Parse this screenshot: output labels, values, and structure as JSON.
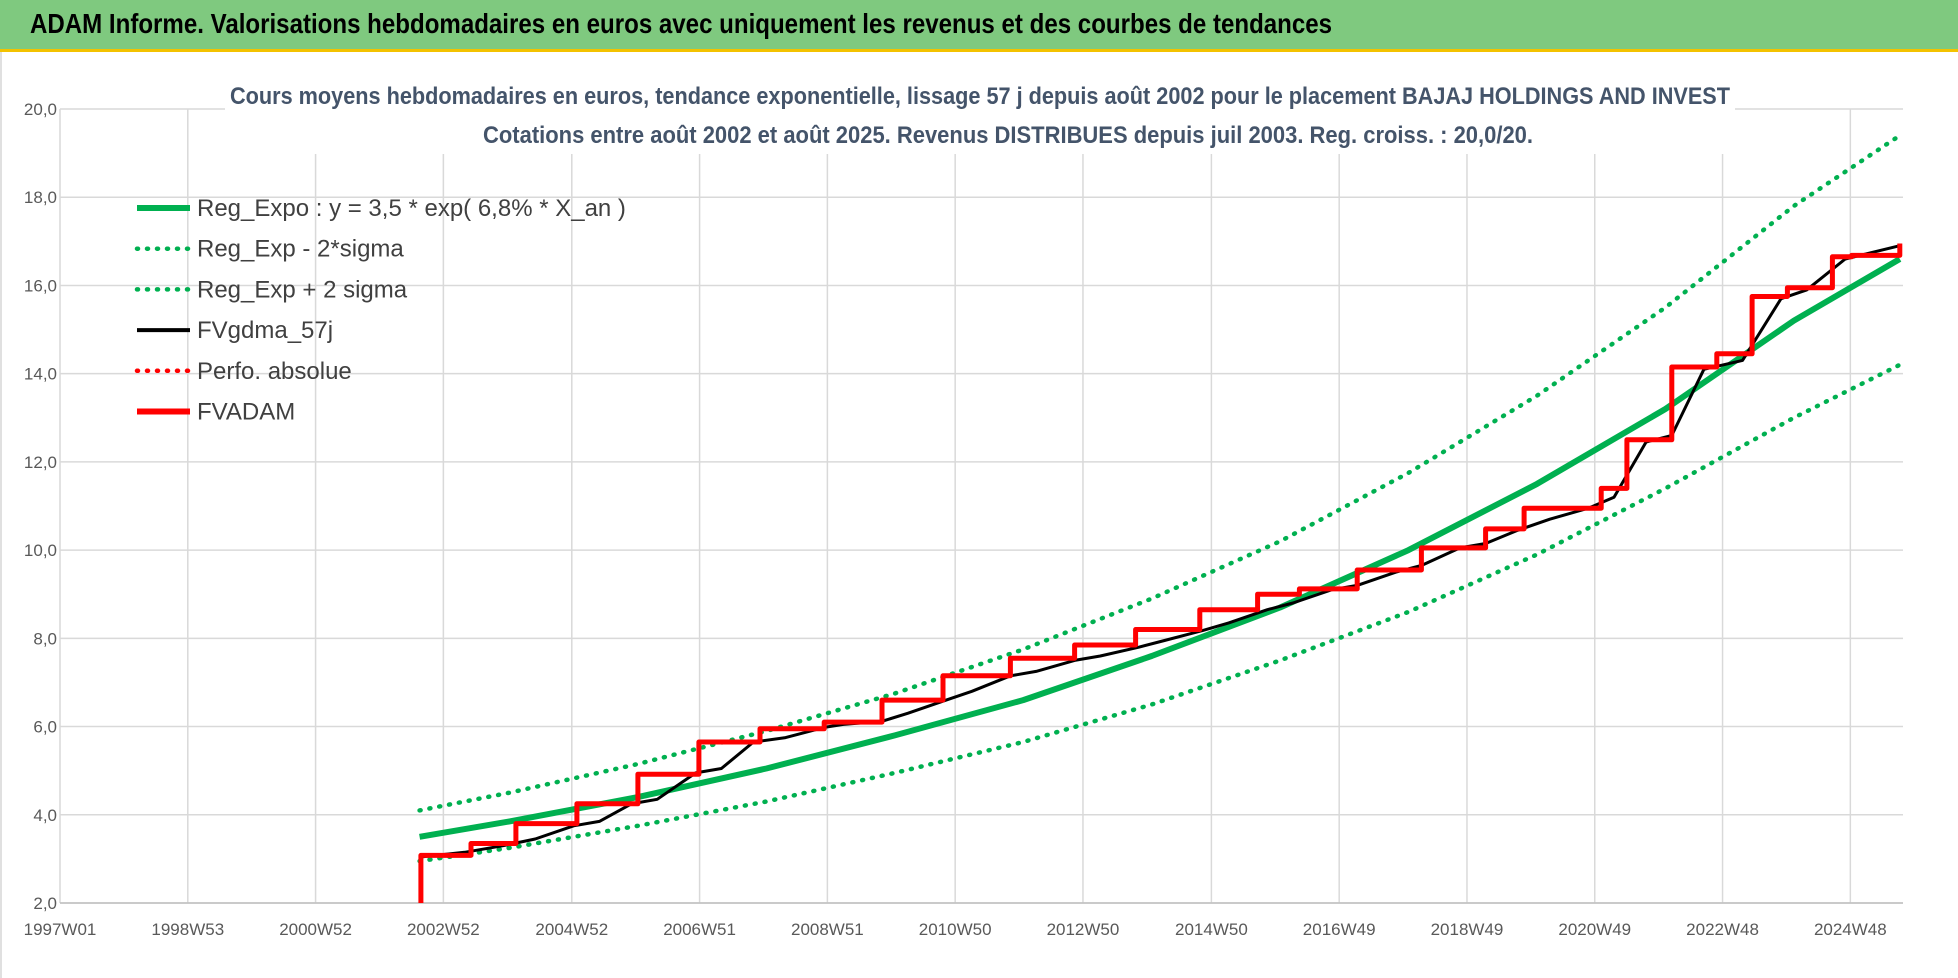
{
  "header": {
    "title": "ADAM Informe. Valorisations hebdomadaires en euros avec uniquement les revenus et des courbes de tendances"
  },
  "chart_data": {
    "type": "line",
    "title": "Cours moyens hebdomadaires en euros, tendance exponentielle, lissage 57 j depuis août 2002 pour le placement BAJAJ HOLDINGS AND INVEST",
    "subtitle": "Cotations entre août 2002 et août 2025. Revenus DISTRIBUES depuis juil 2003. Reg. croiss. : 20,0/20.",
    "xlabel": "",
    "ylabel": "",
    "x_range": [
      1997.0,
      2025.7
    ],
    "ylim": [
      2.0,
      20.0
    ],
    "y_ticks": [
      "2,0",
      "4,0",
      "6,0",
      "8,0",
      "10,0",
      "12,0",
      "14,0",
      "16,0",
      "18,0",
      "20,0"
    ],
    "x_ticks": [
      {
        "label": "1997W01",
        "x": 1997.0
      },
      {
        "label": "1998W53",
        "x": 1998.99
      },
      {
        "label": "2000W52",
        "x": 2000.98
      },
      {
        "label": "2002W52",
        "x": 2002.97
      },
      {
        "label": "2004W52",
        "x": 2004.97
      },
      {
        "label": "2006W51",
        "x": 2006.96
      },
      {
        "label": "2008W51",
        "x": 2008.95
      },
      {
        "label": "2010W50",
        "x": 2010.94
      },
      {
        "label": "2012W50",
        "x": 2012.93
      },
      {
        "label": "2014W50",
        "x": 2014.93
      },
      {
        "label": "2016W49",
        "x": 2016.92
      },
      {
        "label": "2018W49",
        "x": 2018.91
      },
      {
        "label": "2020W49",
        "x": 2020.9
      },
      {
        "label": "2022W48",
        "x": 2022.89
      },
      {
        "label": "2024W48",
        "x": 2024.88
      }
    ],
    "grid": true,
    "legend_position": "top-left",
    "series": [
      {
        "name": "Reg_Expo : y = 3,5 * exp( 6,8% *  X_an )",
        "color": "#00b050",
        "style": "solid",
        "x": [
          2002.6,
          2004.0,
          2006.0,
          2008.0,
          2010.0,
          2012.0,
          2014.0,
          2016.0,
          2018.0,
          2020.0,
          2022.0,
          2024.0,
          2025.65
        ],
        "y": [
          3.5,
          3.85,
          4.4,
          5.05,
          5.8,
          6.6,
          7.6,
          8.7,
          10.0,
          11.5,
          13.2,
          15.2,
          16.6
        ]
      },
      {
        "name": "Reg_Exp - 2*sigma",
        "color": "#00b050",
        "style": "dotted",
        "x": [
          2002.6,
          2004.0,
          2006.0,
          2008.0,
          2010.0,
          2012.0,
          2014.0,
          2016.0,
          2018.0,
          2020.0,
          2022.0,
          2024.0,
          2025.65
        ],
        "y": [
          2.95,
          3.25,
          3.75,
          4.3,
          4.95,
          5.65,
          6.5,
          7.5,
          8.6,
          9.9,
          11.4,
          13.0,
          14.2
        ]
      },
      {
        "name": "Reg_Exp + 2 sigma",
        "color": "#00b050",
        "style": "dotted",
        "x": [
          2002.6,
          2004.0,
          2006.0,
          2008.0,
          2010.0,
          2012.0,
          2014.0,
          2016.0,
          2018.0,
          2020.0,
          2022.0,
          2024.0,
          2025.65
        ],
        "y": [
          4.1,
          4.5,
          5.15,
          5.9,
          6.75,
          7.75,
          8.9,
          10.2,
          11.75,
          13.5,
          15.5,
          17.8,
          19.4
        ]
      },
      {
        "name": "FVgdma_57j",
        "color": "#000000",
        "style": "solid",
        "x": [
          2002.65,
          2003.3,
          2003.9,
          2004.4,
          2005.0,
          2005.4,
          2005.9,
          2006.3,
          2006.9,
          2007.3,
          2007.8,
          2008.3,
          2008.9,
          2009.2,
          2009.8,
          2010.2,
          2010.8,
          2011.2,
          2011.8,
          2012.2,
          2012.8,
          2013.2,
          2013.8,
          2014.2,
          2014.8,
          2015.2,
          2015.8,
          2016.2,
          2016.8,
          2017.2,
          2017.8,
          2018.2,
          2018.8,
          2019.2,
          2019.7,
          2020.2,
          2020.8,
          2021.2,
          2021.7,
          2022.1,
          2022.6,
          2023.2,
          2023.8,
          2024.2,
          2024.8,
          2025.65
        ],
        "y": [
          3.05,
          3.15,
          3.3,
          3.45,
          3.75,
          3.85,
          4.25,
          4.35,
          4.95,
          5.05,
          5.65,
          5.75,
          5.98,
          6.05,
          6.12,
          6.3,
          6.6,
          6.8,
          7.15,
          7.25,
          7.5,
          7.6,
          7.8,
          7.95,
          8.18,
          8.35,
          8.65,
          8.8,
          9.1,
          9.2,
          9.5,
          9.65,
          10.05,
          10.15,
          10.45,
          10.7,
          10.95,
          11.2,
          12.45,
          12.6,
          14.1,
          14.3,
          15.7,
          15.9,
          16.6,
          16.9
        ]
      },
      {
        "name": "Perfo. absolue",
        "color": "#ff0000",
        "style": "dotted",
        "x": [],
        "y": []
      },
      {
        "name": "FVADAM",
        "color": "#ff0000",
        "style": "solid",
        "x": [
          2002.62,
          2002.62,
          2002.7,
          2003.4,
          2003.4,
          2004.1,
          2004.1,
          2005.05,
          2005.05,
          2006.0,
          2006.0,
          2006.95,
          2006.95,
          2007.9,
          2007.9,
          2008.9,
          2008.9,
          2009.8,
          2009.8,
          2010.75,
          2010.75,
          2011.8,
          2011.8,
          2012.8,
          2012.8,
          2013.75,
          2013.75,
          2014.75,
          2014.75,
          2015.65,
          2015.65,
          2016.3,
          2016.3,
          2017.2,
          2017.2,
          2018.2,
          2018.2,
          2019.2,
          2019.2,
          2019.8,
          2019.8,
          2021.0,
          2021.0,
          2021.4,
          2021.4,
          2022.1,
          2022.1,
          2022.8,
          2022.8,
          2023.35,
          2023.35,
          2023.9,
          2023.9,
          2024.6,
          2024.6,
          2024.9,
          2024.9,
          2025.65,
          2025.65
        ],
        "y": [
          2.0,
          3.08,
          3.08,
          3.08,
          3.35,
          3.35,
          3.8,
          3.8,
          4.25,
          4.25,
          4.92,
          4.92,
          5.65,
          5.65,
          5.95,
          5.95,
          6.1,
          6.1,
          6.6,
          6.6,
          7.15,
          7.15,
          7.55,
          7.55,
          7.85,
          7.85,
          8.2,
          8.2,
          8.65,
          8.65,
          9.0,
          9.0,
          9.12,
          9.12,
          9.55,
          9.55,
          10.05,
          10.05,
          10.48,
          10.48,
          10.95,
          10.95,
          11.4,
          11.4,
          12.5,
          12.5,
          14.15,
          14.15,
          14.45,
          14.45,
          15.75,
          15.75,
          15.95,
          15.95,
          16.65,
          16.65,
          16.68,
          16.68,
          16.95
        ]
      }
    ]
  }
}
